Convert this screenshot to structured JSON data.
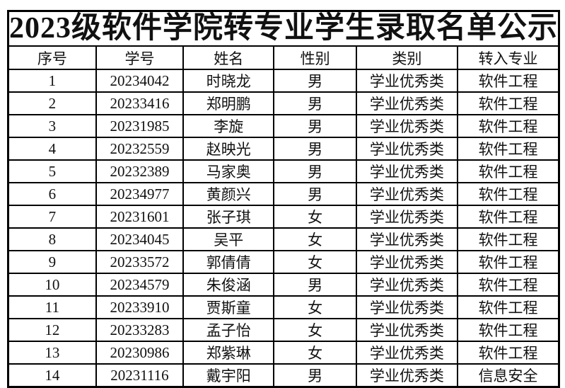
{
  "title": "2023级软件学院转专业学生录取名单公示",
  "table": {
    "columns": [
      {
        "key": "index",
        "label": "序号"
      },
      {
        "key": "student_id",
        "label": "学号"
      },
      {
        "key": "name",
        "label": "姓名"
      },
      {
        "key": "gender",
        "label": "性别"
      },
      {
        "key": "category",
        "label": "类别"
      },
      {
        "key": "major",
        "label": "转入专业"
      }
    ],
    "rows": [
      {
        "index": "1",
        "student_id": "20234042",
        "name": "时晓龙",
        "gender": "男",
        "category": "学业优秀类",
        "major": "软件工程"
      },
      {
        "index": "2",
        "student_id": "20233416",
        "name": "郑明鹏",
        "gender": "男",
        "category": "学业优秀类",
        "major": "软件工程"
      },
      {
        "index": "3",
        "student_id": "20231985",
        "name": "李旋",
        "gender": "男",
        "category": "学业优秀类",
        "major": "软件工程"
      },
      {
        "index": "4",
        "student_id": "20232559",
        "name": "赵映光",
        "gender": "男",
        "category": "学业优秀类",
        "major": "软件工程"
      },
      {
        "index": "5",
        "student_id": "20232389",
        "name": "马家奥",
        "gender": "男",
        "category": "学业优秀类",
        "major": "软件工程"
      },
      {
        "index": "6",
        "student_id": "20234977",
        "name": "黄颜兴",
        "gender": "男",
        "category": "学业优秀类",
        "major": "软件工程"
      },
      {
        "index": "7",
        "student_id": "20231601",
        "name": "张子琪",
        "gender": "女",
        "category": "学业优秀类",
        "major": "软件工程"
      },
      {
        "index": "8",
        "student_id": "20234045",
        "name": "吴平",
        "gender": "女",
        "category": "学业优秀类",
        "major": "软件工程"
      },
      {
        "index": "9",
        "student_id": "20233572",
        "name": "郭倩倩",
        "gender": "女",
        "category": "学业优秀类",
        "major": "软件工程"
      },
      {
        "index": "10",
        "student_id": "20234579",
        "name": "朱俊涵",
        "gender": "男",
        "category": "学业优秀类",
        "major": "软件工程"
      },
      {
        "index": "11",
        "student_id": "20233910",
        "name": "贾斯童",
        "gender": "女",
        "category": "学业优秀类",
        "major": "软件工程"
      },
      {
        "index": "12",
        "student_id": "20233283",
        "name": "孟子怡",
        "gender": "女",
        "category": "学业优秀类",
        "major": "软件工程"
      },
      {
        "index": "13",
        "student_id": "20230986",
        "name": "郑紫琳",
        "gender": "女",
        "category": "学业优秀类",
        "major": "软件工程"
      },
      {
        "index": "14",
        "student_id": "20231116",
        "name": "戴宇阳",
        "gender": "男",
        "category": "学业优秀类",
        "major": "信息安全"
      }
    ]
  },
  "colors": {
    "background": "#ffffff",
    "border": "#000000",
    "text": "#111111"
  }
}
